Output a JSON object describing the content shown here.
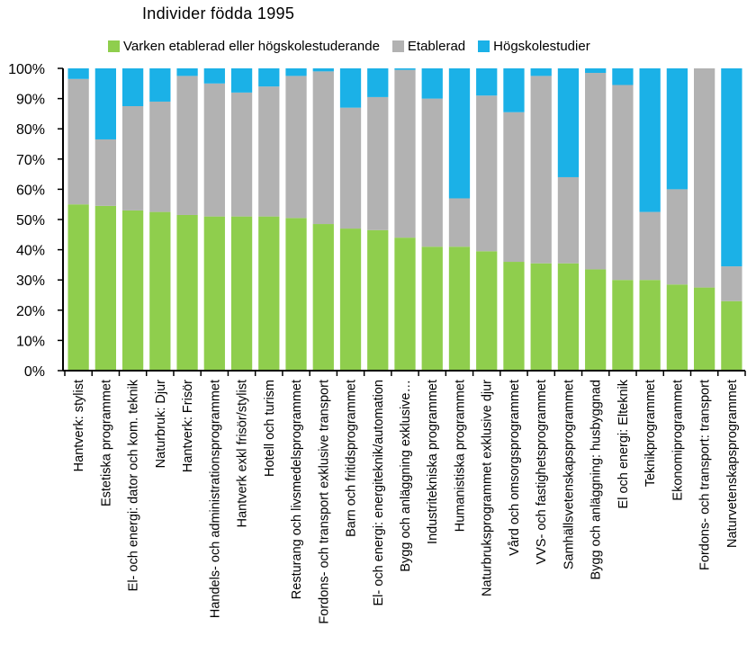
{
  "chart_data": {
    "type": "bar",
    "stacked": true,
    "title": "Individer födda 1995",
    "xlabel": "",
    "ylabel": "",
    "ylim": [
      0,
      100
    ],
    "y_ticks": [
      "0%",
      "10%",
      "20%",
      "30%",
      "40%",
      "50%",
      "60%",
      "70%",
      "80%",
      "90%",
      "100%"
    ],
    "legend_position": "top",
    "categories": [
      "Hantverk: stylist",
      "Estetiska programmet",
      "El- och energi: dator och kom. teknik",
      "Naturbruk: Djur",
      "Hantverk: Frisör",
      "Handels- och administrationsprogrammet",
      "Hantverk exkl frisör/stylist",
      "Hotell och turism",
      "Resturang och livsmedelsprogrammet",
      "Fordons- och transport exklusive transport",
      "Barn och fritidsprogrammet",
      "El- och energi: energiteknik/automation",
      "Bygg och anläggning exklusive…",
      "Industritekniska programmet",
      "Humanistiska programmet",
      "Naturbruksprogrammet exklusive djur",
      "Vård och omsorgsprogrammet",
      "VVS- och fastighetsprogrammet",
      "Samhällsvetenskapsprogrammet",
      "Bygg och anläggning: husbyggnad",
      "El och energi: Elteknik",
      "Teknikprogrammet",
      "Ekonomiprogrammet",
      "Fordons- och transport: transport",
      "Naturvetenskapsprogrammet"
    ],
    "series": [
      {
        "name": "Varken etablerad eller högskolestuderande",
        "color": "#8fce4d",
        "values": [
          55,
          54.5,
          53,
          52.5,
          51.5,
          51,
          51,
          51,
          50.5,
          48.5,
          47,
          46.5,
          44,
          41,
          41,
          39.5,
          36,
          35.5,
          35.5,
          33.5,
          30,
          30,
          28.5,
          27.5,
          23
        ]
      },
      {
        "name": "Etablerad",
        "color": "#b2b2b2",
        "values": [
          41.5,
          22,
          34.5,
          36.5,
          46,
          44,
          41,
          43,
          47,
          50.5,
          40,
          44,
          55.5,
          49,
          16,
          51.5,
          49.5,
          62,
          28.5,
          65,
          64.5,
          22.5,
          31.5,
          72.5,
          11.5
        ]
      },
      {
        "name": "Högskolestudier",
        "color": "#1bb1e7",
        "values": [
          3.5,
          23.5,
          12.5,
          11,
          2.5,
          5,
          8,
          6,
          2.5,
          1,
          13,
          9.5,
          0.5,
          10,
          43,
          9,
          14.5,
          2.5,
          36,
          1.5,
          5.5,
          47.5,
          40,
          0,
          65.5
        ]
      }
    ]
  }
}
